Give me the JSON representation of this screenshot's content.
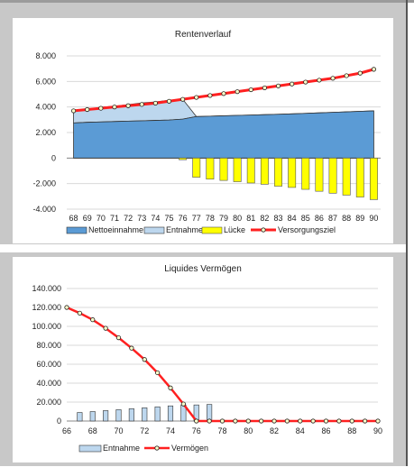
{
  "chart_data": [
    {
      "type": "area",
      "title": "Rentenverlauf",
      "categories": [
        "68",
        "69",
        "70",
        "71",
        "72",
        "73",
        "74",
        "75",
        "76",
        "77",
        "78",
        "79",
        "80",
        "81",
        "82",
        "83",
        "84",
        "85",
        "86",
        "87",
        "88",
        "89",
        "90"
      ],
      "ylim": [
        -4000,
        8000
      ],
      "yticks": [
        -4000,
        -2000,
        0,
        2000,
        4000,
        6000,
        8000
      ],
      "ytick_labels": [
        "-4.000",
        "-2.000",
        "0",
        "2.000",
        "4.000",
        "6.000",
        "8.000"
      ],
      "grid": true,
      "legend_position": "bottom",
      "series": [
        {
          "name": "Nettoeinnahme",
          "kind": "area",
          "color": "#5b9bd5",
          "values": [
            2750,
            2800,
            2830,
            2860,
            2890,
            2920,
            2950,
            2980,
            3050,
            3250,
            3280,
            3310,
            3340,
            3370,
            3400,
            3430,
            3460,
            3500,
            3540,
            3580,
            3620,
            3660,
            3700
          ]
        },
        {
          "name": "Entnahme",
          "kind": "area",
          "color": "#bdd7ee",
          "values": [
            950,
            1000,
            1150,
            1200,
            1300,
            1400,
            1450,
            1550,
            1550,
            0,
            0,
            0,
            0,
            0,
            0,
            0,
            0,
            0,
            0,
            0,
            0,
            0,
            0
          ]
        },
        {
          "name": "Lücke",
          "kind": "bar",
          "color": "#ffff00",
          "values": [
            0,
            0,
            0,
            0,
            0,
            0,
            0,
            0,
            -130,
            -1500,
            -1650,
            -1750,
            -1850,
            -1950,
            -2050,
            -2200,
            -2300,
            -2450,
            -2600,
            -2750,
            -2900,
            -3050,
            -3250
          ]
        },
        {
          "name": "Versorgungsziel",
          "kind": "line",
          "color": "#ff2020",
          "values": [
            3700,
            3800,
            3900,
            4000,
            4100,
            4200,
            4300,
            4450,
            4600,
            4750,
            4900,
            5050,
            5200,
            5350,
            5500,
            5650,
            5800,
            5950,
            6100,
            6250,
            6450,
            6650,
            6950
          ]
        }
      ]
    },
    {
      "type": "bar",
      "title": "Liquides Vermögen",
      "x": [
        66,
        67,
        68,
        69,
        70,
        71,
        72,
        73,
        74,
        75,
        76,
        77,
        78,
        79,
        80,
        81,
        82,
        83,
        84,
        85,
        86,
        87,
        88,
        89,
        90
      ],
      "xtick_labels": [
        "66",
        "68",
        "70",
        "72",
        "74",
        "76",
        "78",
        "80",
        "82",
        "84",
        "86",
        "88",
        "90"
      ],
      "ylim": [
        0,
        140000
      ],
      "yticks": [
        0,
        20000,
        40000,
        60000,
        80000,
        100000,
        120000,
        140000
      ],
      "ytick_labels": [
        "0",
        "20.000",
        "40.000",
        "60.000",
        "80.000",
        "100.000",
        "120.000",
        "140.000"
      ],
      "grid": true,
      "legend_position": "bottom",
      "series": [
        {
          "name": "Entnahme",
          "kind": "bar",
          "color": "#bdd7ee",
          "values": [
            0,
            9000,
            10000,
            11000,
            12000,
            13000,
            14000,
            15000,
            16000,
            17000,
            17000,
            17500,
            0,
            0,
            0,
            0,
            0,
            0,
            0,
            0,
            0,
            0,
            0,
            0,
            0
          ]
        },
        {
          "name": "Vermögen",
          "kind": "line",
          "color": "#ff2020",
          "values": [
            120000,
            114000,
            107000,
            98000,
            88000,
            77000,
            65000,
            51000,
            35000,
            18000,
            0,
            0,
            0,
            0,
            0,
            0,
            0,
            0,
            0,
            0,
            0,
            0,
            0,
            0,
            0
          ]
        }
      ]
    }
  ]
}
